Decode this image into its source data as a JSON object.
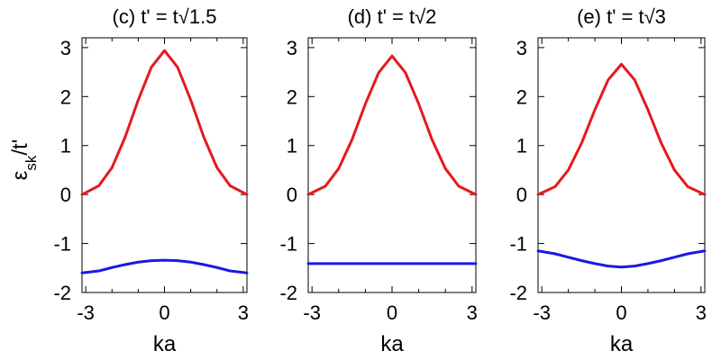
{
  "chart_data": [
    {
      "type": "line",
      "title": "(c) t' = t√1.5",
      "xlabel": "ka",
      "ylabel": "ε_sk/t'",
      "xlim": [
        -3.14159,
        3.14159
      ],
      "ylim": [
        -2,
        3.2
      ],
      "xticks": [
        -3,
        0,
        3
      ],
      "yticks": [
        -2,
        -1,
        0,
        1,
        2,
        3
      ],
      "xtick_labels": [
        "-3",
        "0",
        "3"
      ],
      "ytick_labels": [
        "-2",
        "-1",
        "0",
        "1",
        "2",
        "3"
      ],
      "grid": false,
      "series": [
        {
          "color": "#e41a1c",
          "x": [
            -3.14,
            -2.5,
            -2.0,
            -1.5,
            -1.0,
            -0.5,
            0.0,
            0.5,
            1.0,
            1.5,
            2.0,
            2.5,
            3.14
          ],
          "y": [
            0.0,
            0.18,
            0.55,
            1.17,
            1.93,
            2.6,
            2.94,
            2.6,
            1.93,
            1.17,
            0.55,
            0.18,
            0.0
          ]
        },
        {
          "color": "#1a1ae4",
          "x": [
            -3.14,
            -2.5,
            -2.0,
            -1.5,
            -1.0,
            -0.5,
            0.0,
            0.5,
            1.0,
            1.5,
            2.0,
            2.5,
            3.14
          ],
          "y": [
            -1.6,
            -1.56,
            -1.49,
            -1.43,
            -1.38,
            -1.35,
            -1.34,
            -1.35,
            -1.38,
            -1.43,
            -1.49,
            -1.56,
            -1.6
          ]
        }
      ]
    },
    {
      "type": "line",
      "title": "(d) t' = t√2",
      "xlabel": "ka",
      "ylabel": "",
      "xlim": [
        -3.14159,
        3.14159
      ],
      "ylim": [
        -2,
        3.2
      ],
      "xticks": [
        -3,
        0,
        3
      ],
      "yticks": [
        -2,
        -1,
        0,
        1,
        2,
        3
      ],
      "xtick_labels": [
        "-3",
        "0",
        "3"
      ],
      "ytick_labels": [
        "-2",
        "-1",
        "0",
        "1",
        "2",
        "3"
      ],
      "grid": false,
      "series": [
        {
          "color": "#e41a1c",
          "x": [
            -3.14,
            -2.5,
            -2.0,
            -1.5,
            -1.0,
            -0.5,
            0.0,
            0.5,
            1.0,
            1.5,
            2.0,
            2.5,
            3.14
          ],
          "y": [
            0.0,
            0.17,
            0.53,
            1.12,
            1.85,
            2.49,
            2.83,
            2.49,
            1.85,
            1.12,
            0.53,
            0.17,
            0.0
          ]
        },
        {
          "color": "#1a1ae4",
          "x": [
            -3.14,
            3.14
          ],
          "y": [
            -1.41,
            -1.41
          ]
        }
      ]
    },
    {
      "type": "line",
      "title": "(e) t' = t√3",
      "xlabel": "ka",
      "ylabel": "",
      "xlim": [
        -3.14159,
        3.14159
      ],
      "ylim": [
        -2,
        3.2
      ],
      "xticks": [
        -3,
        0,
        3
      ],
      "yticks": [
        -2,
        -1,
        0,
        1,
        2,
        3
      ],
      "xtick_labels": [
        "-3",
        "0",
        "3"
      ],
      "ytick_labels": [
        "-2",
        "-1",
        "0",
        "1",
        "2",
        "3"
      ],
      "grid": false,
      "series": [
        {
          "color": "#e41a1c",
          "x": [
            -3.14,
            -2.5,
            -2.0,
            -1.5,
            -1.0,
            -0.5,
            0.0,
            0.5,
            1.0,
            1.5,
            2.0,
            2.5,
            3.14
          ],
          "y": [
            0.0,
            0.16,
            0.5,
            1.05,
            1.73,
            2.34,
            2.66,
            2.34,
            1.73,
            1.05,
            0.5,
            0.16,
            0.0
          ]
        },
        {
          "color": "#1a1ae4",
          "x": [
            -3.14,
            -2.5,
            -2.0,
            -1.5,
            -1.0,
            -0.5,
            0.0,
            0.5,
            1.0,
            1.5,
            2.0,
            2.5,
            3.14
          ],
          "y": [
            -1.15,
            -1.21,
            -1.28,
            -1.35,
            -1.41,
            -1.46,
            -1.48,
            -1.46,
            -1.41,
            -1.35,
            -1.28,
            -1.21,
            -1.15
          ]
        }
      ]
    }
  ]
}
